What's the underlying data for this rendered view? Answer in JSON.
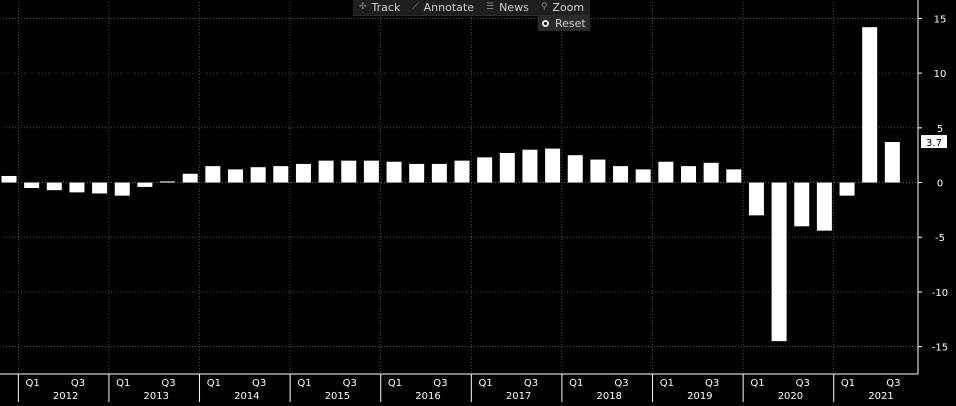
{
  "toolbar": {
    "track": "Track",
    "annotate": "Annotate",
    "news": "News",
    "zoom": "Zoom",
    "reset": "Reset"
  },
  "chart_data": {
    "type": "bar",
    "categories": [
      "Q4 2011",
      "Q1 2012",
      "Q2 2012",
      "Q3 2012",
      "Q4 2012",
      "Q1 2013",
      "Q2 2013",
      "Q3 2013",
      "Q4 2013",
      "Q1 2014",
      "Q2 2014",
      "Q3 2014",
      "Q4 2014",
      "Q1 2015",
      "Q2 2015",
      "Q3 2015",
      "Q4 2015",
      "Q1 2016",
      "Q2 2016",
      "Q3 2016",
      "Q4 2016",
      "Q1 2017",
      "Q2 2017",
      "Q3 2017",
      "Q4 2017",
      "Q1 2018",
      "Q2 2018",
      "Q3 2018",
      "Q4 2018",
      "Q1 2019",
      "Q2 2019",
      "Q3 2019",
      "Q4 2019",
      "Q1 2020",
      "Q2 2020",
      "Q3 2020",
      "Q4 2020",
      "Q1 2021",
      "Q2 2021",
      "Q3 2021"
    ],
    "values": [
      0.6,
      -0.5,
      -0.7,
      -0.9,
      -1.0,
      -1.2,
      -0.4,
      0.1,
      0.8,
      1.5,
      1.2,
      1.4,
      1.5,
      1.7,
      2.0,
      2.0,
      2.0,
      1.9,
      1.7,
      1.7,
      2.0,
      2.3,
      2.7,
      3.0,
      3.1,
      2.5,
      2.1,
      1.5,
      1.2,
      1.9,
      1.5,
      1.8,
      1.2,
      -3.0,
      -14.5,
      -4.0,
      -4.4,
      -1.2,
      14.2,
      3.7
    ],
    "xlabel": "",
    "ylabel": "",
    "ylim": [
      -17.5,
      16.5
    ],
    "yticks": [
      -15,
      -10,
      -5,
      0,
      5,
      10,
      15
    ],
    "ytick_labels": [
      "-15",
      "-10",
      "-5",
      "0",
      "5",
      "10",
      "15"
    ],
    "quarter_labels": [
      "Q1",
      "Q3"
    ],
    "years": [
      "2012",
      "2013",
      "2014",
      "2015",
      "2016",
      "2017",
      "2018",
      "2019",
      "2020",
      "2021"
    ],
    "last_value_label": "3.7",
    "grid": true,
    "colors": {
      "background": "#000000",
      "bar": "#ffffff",
      "grid": "#7a7a7a",
      "axis": "#ffffff",
      "text": "#ffffff"
    }
  }
}
